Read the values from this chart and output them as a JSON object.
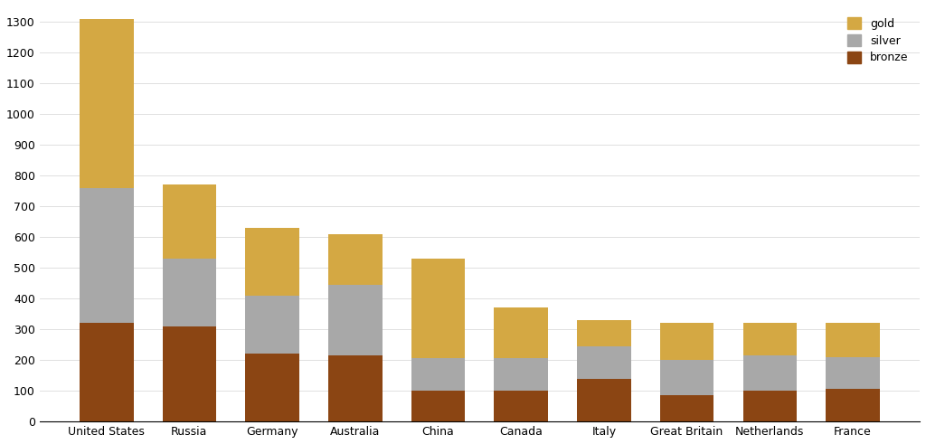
{
  "countries": [
    "United States",
    "Russia",
    "Germany",
    "Australia",
    "China",
    "Canada",
    "Italy",
    "Great Britain",
    "Netherlands",
    "France"
  ],
  "bronze": [
    320,
    310,
    220,
    215,
    100,
    100,
    140,
    85,
    100,
    105
  ],
  "silver": [
    440,
    220,
    190,
    230,
    105,
    105,
    105,
    115,
    115,
    105
  ],
  "gold": [
    550,
    240,
    220,
    165,
    325,
    165,
    85,
    120,
    105,
    110
  ],
  "gold_color": "#D4A843",
  "silver_color": "#A8A8A8",
  "bronze_color": "#8B4513",
  "background_color": "#FFFFFF",
  "ylim": [
    0,
    1350
  ],
  "yticks": [
    0,
    100,
    200,
    300,
    400,
    500,
    600,
    700,
    800,
    900,
    1000,
    1100,
    1200,
    1300
  ],
  "bar_width": 0.65,
  "title_fontsize": 11,
  "tick_fontsize": 9,
  "legend_fontsize": 9
}
